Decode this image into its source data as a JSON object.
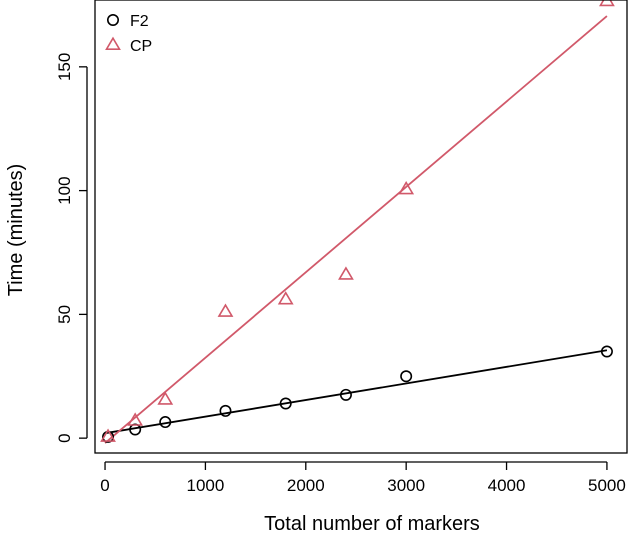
{
  "chart_data": {
    "type": "scatter",
    "title": "",
    "xlabel": "Total number of markers",
    "ylabel": "Time (minutes)",
    "xlim": [
      -100,
      5200
    ],
    "ylim": [
      -6,
      177
    ],
    "x_ticks": [
      0,
      1000,
      2000,
      3000,
      4000,
      5000
    ],
    "y_ticks": [
      0,
      50,
      100,
      150
    ],
    "grid": false,
    "legend_position": "top-left",
    "series": [
      {
        "name": "F2",
        "marker": "circle",
        "color": "#000000",
        "points": [
          {
            "x": 30,
            "y": 0.5
          },
          {
            "x": 300,
            "y": 3.5
          },
          {
            "x": 600,
            "y": 6.5
          },
          {
            "x": 1200,
            "y": 11
          },
          {
            "x": 1800,
            "y": 14
          },
          {
            "x": 2400,
            "y": 17.5
          },
          {
            "x": 3000,
            "y": 25
          },
          {
            "x": 5000,
            "y": 35
          }
        ],
        "fit_line": {
          "intercept": 2.0,
          "slope": 0.0067
        }
      },
      {
        "name": "CP",
        "marker": "triangle",
        "color": "#D1596A",
        "points": [
          {
            "x": 30,
            "y": 0.5
          },
          {
            "x": 300,
            "y": 7
          },
          {
            "x": 600,
            "y": 15.5
          },
          {
            "x": 1200,
            "y": 51
          },
          {
            "x": 1800,
            "y": 56
          },
          {
            "x": 2400,
            "y": 66
          },
          {
            "x": 3000,
            "y": 100.5
          },
          {
            "x": 5000,
            "y": 176.5
          }
        ],
        "fit_line": {
          "intercept": -2.0,
          "slope": 0.0345
        }
      }
    ]
  }
}
